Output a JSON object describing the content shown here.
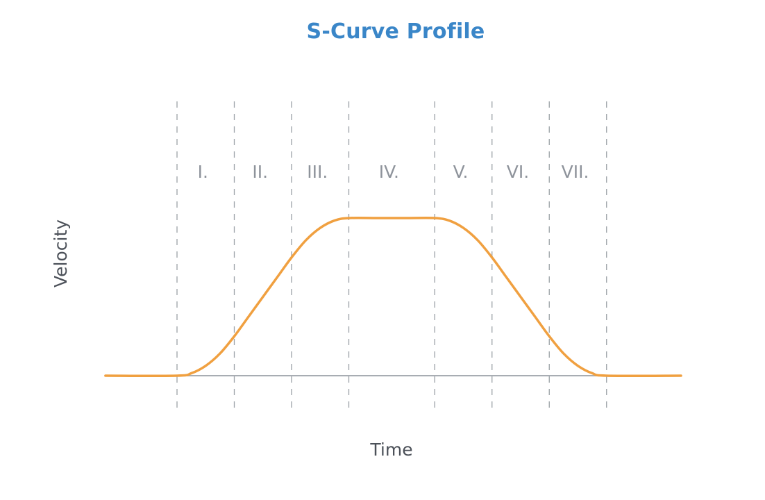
{
  "chart_data": {
    "type": "line",
    "title": "S-Curve Profile",
    "xlabel": "Time",
    "ylabel": "Velocity",
    "phases": [
      "I.",
      "II.",
      "III.",
      "IV.",
      "V.",
      "VI.",
      "VII."
    ],
    "phase_boundaries": [
      0,
      1,
      2,
      3,
      4.5,
      5.5,
      6.5,
      7.5
    ],
    "xlim": [
      -1.25,
      8.8
    ],
    "ylim": [
      0,
      1
    ],
    "series": [
      {
        "name": "",
        "color": "#f0a040",
        "x": [
          -1.25,
          0,
          0.25,
          0.5,
          0.75,
          1,
          1.25,
          1.5,
          1.75,
          2,
          2.25,
          2.5,
          2.75,
          3,
          3.5,
          4,
          4.5,
          4.75,
          5,
          5.25,
          5.5,
          5.75,
          6,
          6.25,
          6.5,
          6.75,
          7,
          7.25,
          7.5,
          8.8
        ],
        "values": [
          0,
          0,
          0.0156,
          0.0625,
          0.1406,
          0.25,
          0.375,
          0.5,
          0.625,
          0.75,
          0.8594,
          0.9375,
          0.9844,
          1,
          1,
          1,
          1,
          0.9844,
          0.9375,
          0.8594,
          0.75,
          0.625,
          0.5,
          0.375,
          0.25,
          0.1406,
          0.0625,
          0.0156,
          0,
          0
        ]
      }
    ],
    "grid": false
  },
  "colors": {
    "title": "#3a86c8",
    "curve": "#f0a040",
    "baseline": "#a8adb3",
    "divider": "#9aa0a6"
  }
}
